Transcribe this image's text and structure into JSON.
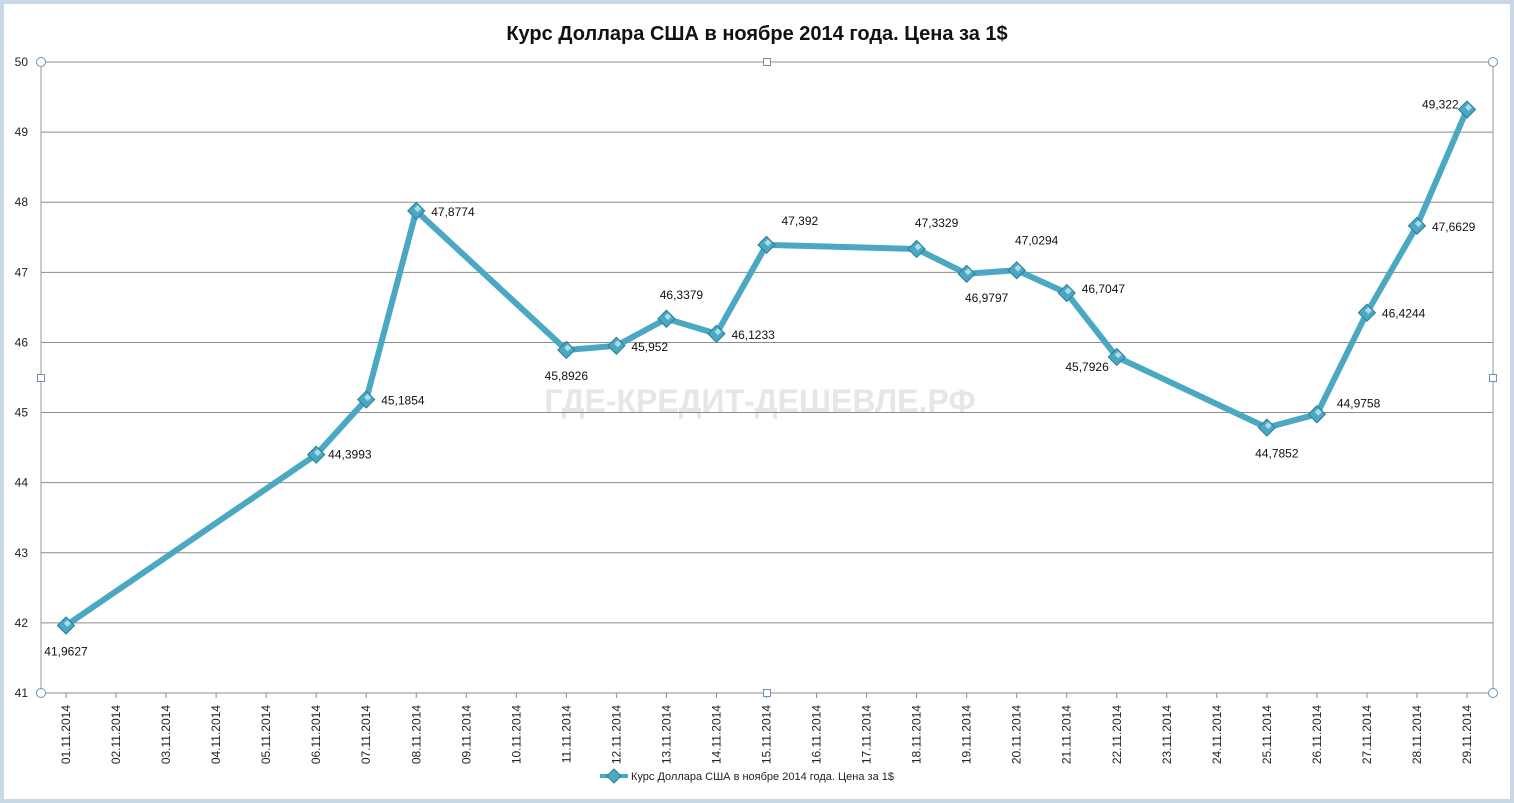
{
  "chart_data": {
    "type": "line",
    "title": "Курс Доллара США в ноябре 2014 года. Цена за 1$",
    "xlabel": "",
    "ylabel": "",
    "ylim": [
      41,
      50
    ],
    "yticks": [
      41,
      42,
      43,
      44,
      45,
      46,
      47,
      48,
      49,
      50
    ],
    "grid": true,
    "legend_position": "bottom",
    "watermark": "ГДЕ-КРЕДИТ-ДЕШЕВЛЕ.РФ",
    "categories": [
      "01.11.2014",
      "02.11.2014",
      "03.11.2014",
      "04.11.2014",
      "05.11.2014",
      "06.11.2014",
      "07.11.2014",
      "08.11.2014",
      "09.11.2014",
      "10.11.2014",
      "11.11.2014",
      "12.11.2014",
      "13.11.2014",
      "14.11.2014",
      "15.11.2014",
      "16.11.2014",
      "17.11.2014",
      "18.11.2014",
      "19.11.2014",
      "20.11.2014",
      "21.11.2014",
      "22.11.2014",
      "23.11.2014",
      "24.11.2014",
      "25.11.2014",
      "26.11.2014",
      "27.11.2014",
      "28.11.2014",
      "29.11.2014"
    ],
    "series": [
      {
        "name": "Курс Доллара США в ноябре 2014 года. Цена за 1$",
        "color": "#4aa8c2",
        "points": [
          {
            "x": "01.11.2014",
            "y": 41.9627,
            "label": "41,9627"
          },
          {
            "x": "06.11.2014",
            "y": 44.3993,
            "label": "44,3993"
          },
          {
            "x": "07.11.2014",
            "y": 45.1854,
            "label": "45,1854"
          },
          {
            "x": "08.11.2014",
            "y": 47.8774,
            "label": "47,8774"
          },
          {
            "x": "11.11.2014",
            "y": 45.8926,
            "label": "45,8926"
          },
          {
            "x": "12.11.2014",
            "y": 45.952,
            "label": "45,952"
          },
          {
            "x": "13.11.2014",
            "y": 46.3379,
            "label": "46,3379"
          },
          {
            "x": "14.11.2014",
            "y": 46.1233,
            "label": "46,1233"
          },
          {
            "x": "15.11.2014",
            "y": 47.392,
            "label": "47,392"
          },
          {
            "x": "18.11.2014",
            "y": 47.3329,
            "label": "47,3329"
          },
          {
            "x": "19.11.2014",
            "y": 46.9797,
            "label": "46,9797"
          },
          {
            "x": "20.11.2014",
            "y": 47.0294,
            "label": "47,0294"
          },
          {
            "x": "21.11.2014",
            "y": 46.7047,
            "label": "46,7047"
          },
          {
            "x": "22.11.2014",
            "y": 45.7926,
            "label": "45,7926"
          },
          {
            "x": "25.11.2014",
            "y": 44.7852,
            "label": "44,7852"
          },
          {
            "x": "26.11.2014",
            "y": 44.9758,
            "label": "44,9758"
          },
          {
            "x": "27.11.2014",
            "y": 46.4244,
            "label": "46,4244"
          },
          {
            "x": "28.11.2014",
            "y": 47.6629,
            "label": "47,6629"
          },
          {
            "x": "29.11.2014",
            "y": 49.322,
            "label": "49,322"
          }
        ]
      }
    ]
  }
}
